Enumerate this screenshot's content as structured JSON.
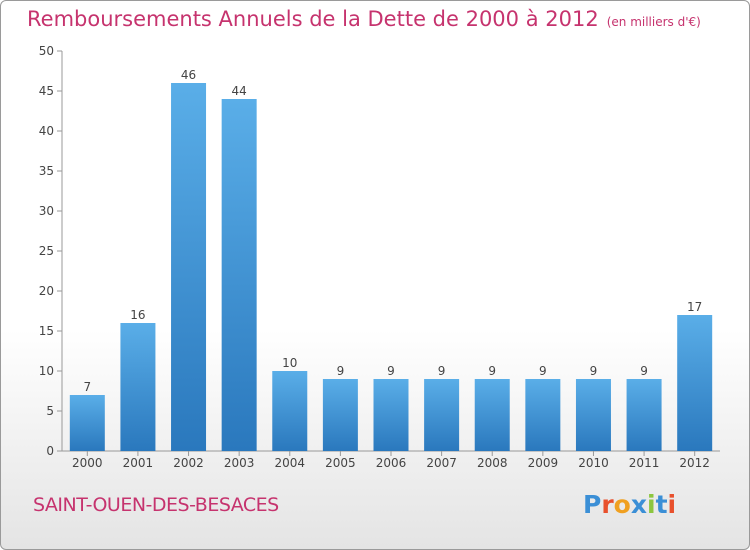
{
  "header": {
    "title": "Remboursements Annuels de la Dette de 2000 à 2012",
    "unit": "(en milliers d'€)"
  },
  "footer": {
    "commune": "SAINT-OUEN-DES-BESACES",
    "logo": "Proxiti"
  },
  "colors": {
    "title": "#c6336e",
    "bar_top": "#5aaee8",
    "bar_bottom": "#2a78bd",
    "logo": [
      "#3b8fd6",
      "#e8502c",
      "#f0a020",
      "#3b8fd6",
      "#8cc63f",
      "#3b8fd6",
      "#e8502c"
    ]
  },
  "chart_data": {
    "type": "bar",
    "categories": [
      "2000",
      "2001",
      "2002",
      "2003",
      "2004",
      "2005",
      "2006",
      "2007",
      "2008",
      "2009",
      "2010",
      "2011",
      "2012"
    ],
    "values": [
      7,
      16,
      46,
      44,
      10,
      9,
      9,
      9,
      9,
      9,
      9,
      9,
      17
    ],
    "ylim": [
      0,
      50
    ],
    "yticks": [
      0,
      5,
      10,
      15,
      20,
      25,
      30,
      35,
      40,
      45,
      50
    ],
    "grid": false,
    "legend": "none"
  }
}
